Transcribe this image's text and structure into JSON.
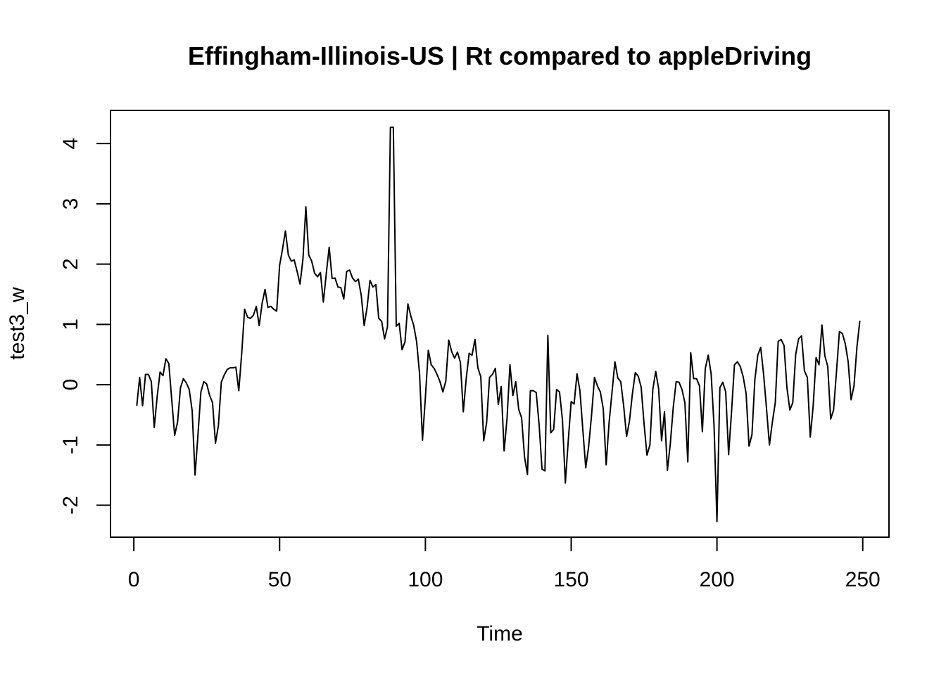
{
  "chart_data": {
    "type": "line",
    "title": "Effingham-Illinois-US | Rt compared to appleDriving",
    "xlabel": "Time",
    "ylabel": "test3_w",
    "xlim": [
      -8,
      259
    ],
    "ylim": [
      -2.53,
      4.55
    ],
    "xticks": [
      0,
      50,
      100,
      150,
      200,
      250
    ],
    "yticks": [
      -2,
      -1,
      0,
      1,
      2,
      3,
      4
    ],
    "grid": false,
    "legend": "none",
    "line_color": "#000000",
    "series": [
      {
        "x_start": 1,
        "values": [
          -0.35,
          0.12,
          -0.35,
          0.17,
          0.17,
          0.05,
          -0.71,
          -0.2,
          0.21,
          0.15,
          0.43,
          0.35,
          -0.25,
          -0.84,
          -0.62,
          -0.05,
          0.1,
          0.03,
          -0.08,
          -0.43,
          -1.5,
          -0.83,
          -0.12,
          0.05,
          0.01,
          -0.18,
          -0.3,
          -0.97,
          -0.68,
          0.04,
          0.16,
          0.25,
          0.28,
          0.28,
          0.29,
          -0.1,
          0.52,
          1.25,
          1.12,
          1.1,
          1.15,
          1.3,
          0.98,
          1.35,
          1.58,
          1.28,
          1.3,
          1.25,
          1.22,
          1.98,
          2.25,
          2.55,
          2.15,
          2.05,
          2.07,
          1.88,
          1.67,
          2.08,
          2.95,
          2.15,
          2.05,
          1.85,
          1.79,
          1.86,
          1.37,
          1.84,
          2.28,
          1.76,
          1.77,
          1.62,
          1.61,
          1.42,
          1.88,
          1.9,
          1.77,
          1.71,
          1.75,
          1.48,
          0.98,
          1.28,
          1.73,
          1.62,
          1.66,
          1.1,
          1.05,
          0.76,
          0.96,
          4.27,
          4.27,
          0.97,
          1.02,
          0.58,
          0.71,
          1.34,
          1.14,
          0.98,
          0.71,
          0.18,
          -0.92,
          -0.21,
          0.57,
          0.33,
          0.27,
          0.17,
          0.05,
          -0.12,
          0.06,
          0.74,
          0.55,
          0.44,
          0.54,
          0.37,
          -0.45,
          0.1,
          0.52,
          0.49,
          0.75,
          0.28,
          0.13,
          -0.93,
          -0.63,
          0.12,
          0.17,
          0.27,
          -0.33,
          -0.03,
          -1.1,
          -0.56,
          0.33,
          -0.18,
          0.05,
          -0.41,
          -0.55,
          -1.2,
          -1.49,
          -0.1,
          -0.1,
          -0.13,
          -0.66,
          -1.4,
          -1.43,
          0.82,
          -0.8,
          -0.74,
          -0.08,
          -0.12,
          -0.58,
          -1.63,
          -0.93,
          -0.28,
          -0.32,
          0.18,
          -0.1,
          -0.75,
          -1.38,
          -1.02,
          -0.5,
          0.12,
          -0.02,
          -0.12,
          -0.4,
          -1.33,
          -0.63,
          -0.13,
          0.38,
          0.11,
          0.05,
          -0.35,
          -0.86,
          -0.6,
          -0.15,
          0.2,
          0.14,
          -0.04,
          -0.65,
          -1.17,
          -1.0,
          -0.08,
          0.22,
          -0.07,
          -0.93,
          -0.45,
          -1.42,
          -0.98,
          -0.38,
          0.05,
          0.04,
          -0.08,
          -0.3,
          -1.28,
          0.53,
          0.1,
          0.1,
          -0.02,
          -0.78,
          0.27,
          0.49,
          0.18,
          -0.68,
          -2.27,
          -0.05,
          0.04,
          -0.12,
          -1.16,
          -0.45,
          0.33,
          0.38,
          0.3,
          0.13,
          -0.15,
          -1.02,
          -0.83,
          0.08,
          0.49,
          0.62,
          0.17,
          -0.4,
          -1.0,
          -0.62,
          -0.3,
          0.72,
          0.75,
          0.65,
          -0.05,
          -0.42,
          -0.3,
          0.5,
          0.76,
          0.81,
          0.23,
          0.12,
          -0.87,
          -0.35,
          0.45,
          0.33,
          0.99,
          0.48,
          0.3,
          -0.57,
          -0.42,
          0.22,
          0.88,
          0.85,
          0.68,
          0.38,
          -0.25,
          -0.02,
          0.62,
          1.06
        ]
      }
    ]
  }
}
